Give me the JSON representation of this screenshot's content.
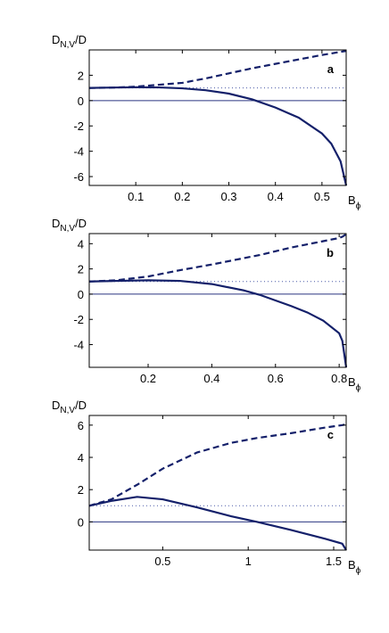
{
  "chart_data": [
    {
      "type": "line",
      "panel_label": "a",
      "ylabel": [
        "D",
        "N,V",
        "/D"
      ],
      "xlabel": [
        "B",
        "ϕ"
      ],
      "x": [
        0,
        0.05,
        0.1,
        0.15,
        0.2,
        0.25,
        0.3,
        0.35,
        0.4,
        0.45,
        0.5,
        0.52,
        0.54,
        0.552
      ],
      "series": [
        {
          "style": "dashed",
          "color": "#14206a",
          "values": [
            1,
            1.02,
            1.1,
            1.25,
            1.4,
            1.75,
            2.15,
            2.55,
            2.9,
            3.25,
            3.6,
            3.72,
            3.85,
            3.92
          ]
        },
        {
          "style": "solid",
          "color": "#14206a",
          "values": [
            1,
            1.03,
            1.05,
            1.04,
            0.97,
            0.82,
            0.55,
            0.1,
            -0.55,
            -1.35,
            -2.6,
            -3.4,
            -4.8,
            -6.7
          ]
        }
      ],
      "hlines": [
        {
          "value": 1,
          "style": "dotted",
          "color": "#4a5aa8"
        },
        {
          "value": 0,
          "style": "solid",
          "color": "#2a3580"
        }
      ],
      "xlim": [
        0,
        0.552
      ],
      "ylim": [
        -6.7,
        4
      ],
      "xticks": [
        0.1,
        0.2,
        0.3,
        0.4,
        0.5
      ],
      "yticks": [
        -6,
        -4,
        -2,
        0,
        2
      ]
    },
    {
      "type": "line",
      "panel_label": "b",
      "ylabel": [
        "D",
        "N,V",
        "/D"
      ],
      "xlabel": [
        "B",
        "ϕ"
      ],
      "x": [
        0.015,
        0.1,
        0.2,
        0.3,
        0.4,
        0.5,
        0.55,
        0.6,
        0.65,
        0.7,
        0.75,
        0.8,
        0.81,
        0.822
      ],
      "series": [
        {
          "style": "dashed",
          "color": "#14206a",
          "values": [
            1,
            1.1,
            1.4,
            1.9,
            2.35,
            2.85,
            3.1,
            3.4,
            3.7,
            3.95,
            4.2,
            4.45,
            4.55,
            4.75
          ]
        },
        {
          "style": "solid",
          "color": "#14206a",
          "values": [
            1,
            1.05,
            1.1,
            1.05,
            0.8,
            0.3,
            -0.05,
            -0.5,
            -0.95,
            -1.45,
            -2.1,
            -3.1,
            -3.7,
            -5.8
          ]
        }
      ],
      "hlines": [
        {
          "value": 1,
          "style": "dotted",
          "color": "#4a5aa8"
        },
        {
          "value": 0,
          "style": "solid",
          "color": "#2a3580"
        }
      ],
      "xlim": [
        0.015,
        0.822
      ],
      "ylim": [
        -5.8,
        4.8
      ],
      "xticks": [
        0.2,
        0.4,
        0.6,
        0.8
      ],
      "yticks": [
        -4,
        -2,
        0,
        2,
        4
      ]
    },
    {
      "type": "line",
      "panel_label": "c",
      "ylabel": [
        "D",
        "N,V",
        "/D"
      ],
      "xlabel": [
        "B",
        "ϕ"
      ],
      "x": [
        0.07,
        0.2,
        0.35,
        0.5,
        0.7,
        0.9,
        1.05,
        1.25,
        1.45,
        1.55,
        1.573
      ],
      "series": [
        {
          "style": "dashed",
          "color": "#14206a",
          "values": [
            1,
            1.4,
            2.3,
            3.3,
            4.3,
            4.9,
            5.2,
            5.5,
            5.85,
            6.0,
            6.05
          ]
        },
        {
          "style": "solid",
          "color": "#14206a",
          "values": [
            1,
            1.3,
            1.55,
            1.4,
            0.9,
            0.35,
            0,
            -0.5,
            -1.05,
            -1.35,
            -1.75
          ]
        }
      ],
      "hlines": [
        {
          "value": 1,
          "style": "dotted",
          "color": "#4a5aa8"
        },
        {
          "value": 0,
          "style": "solid",
          "color": "#2a3580"
        }
      ],
      "xlim": [
        0.07,
        1.573
      ],
      "ylim": [
        -1.75,
        6.6
      ],
      "xticks": [
        0.5,
        1,
        1.5
      ],
      "yticks": [
        0,
        2,
        4,
        6
      ]
    }
  ]
}
